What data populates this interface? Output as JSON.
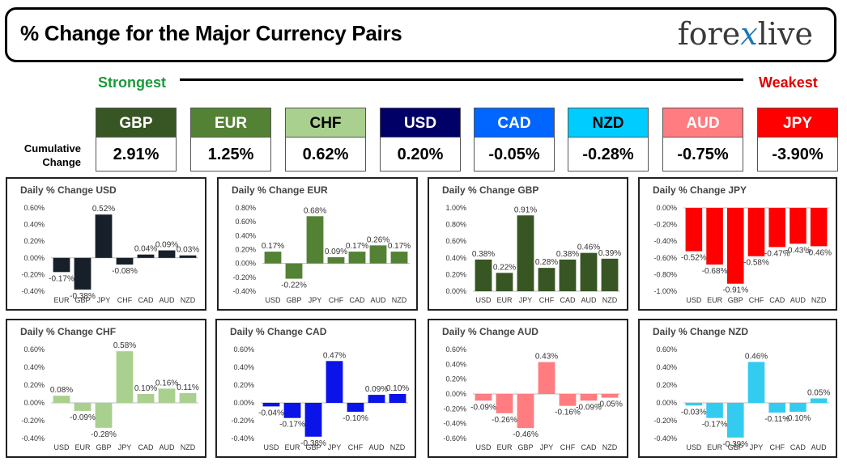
{
  "header": {
    "title": "% Change for the Major Currency Pairs",
    "logo_left": "fore",
    "logo_x": "x",
    "logo_right": "live"
  },
  "scale": {
    "strongest": "Strongest",
    "weakest": "Weakest"
  },
  "cumulative_label_1": "Cumulative",
  "cumulative_label_2": "Change",
  "colors": {
    "GBP": "#375623",
    "EUR": "#548235",
    "CHF": "#a9d08e",
    "USD": "#000066",
    "CAD": "#0066ff",
    "NZD": "#00ccff",
    "AUD": "#ff7c80",
    "JPY": "#ff0000"
  },
  "currencies": [
    {
      "code": "GBP",
      "value": "2.91%",
      "color": "#375623",
      "text": "#ffffff"
    },
    {
      "code": "EUR",
      "value": "1.25%",
      "color": "#548235",
      "text": "#ffffff"
    },
    {
      "code": "CHF",
      "value": "0.62%",
      "color": "#a9d08e",
      "text": "#000000"
    },
    {
      "code": "USD",
      "value": "0.20%",
      "color": "#000066",
      "text": "#ffffff"
    },
    {
      "code": "CAD",
      "value": "-0.05%",
      "color": "#0066ff",
      "text": "#ffffff"
    },
    {
      "code": "NZD",
      "value": "-0.28%",
      "color": "#00ccff",
      "text": "#000000"
    },
    {
      "code": "AUD",
      "value": "-0.75%",
      "color": "#ff7c80",
      "text": "#ffffff"
    },
    {
      "code": "JPY",
      "value": "-3.90%",
      "color": "#ff0000",
      "text": "#ffffff"
    }
  ],
  "chart_data": [
    {
      "type": "bar",
      "title": "Daily % Change USD",
      "color": "#17202a",
      "categories": [
        "EUR",
        "GBP",
        "JPY",
        "CHF",
        "CAD",
        "AUD",
        "NZD"
      ],
      "values": [
        -0.17,
        -0.38,
        0.52,
        -0.08,
        0.04,
        0.09,
        0.03
      ],
      "labels": [
        "-0.17%",
        "-0.38%",
        "0.52%",
        "-0.08%",
        "0.04%",
        "0.09%",
        "0.03%"
      ],
      "yticks": [
        "0.60%",
        "0.40%",
        "0.20%",
        "0.00%",
        "-0.20%",
        "-0.40%"
      ],
      "ylim": [
        -0.4,
        0.6
      ]
    },
    {
      "type": "bar",
      "title": "Daily % Change EUR",
      "color": "#548235",
      "categories": [
        "USD",
        "GBP",
        "JPY",
        "CHF",
        "CAD",
        "AUD",
        "NZD"
      ],
      "values": [
        0.17,
        -0.22,
        0.68,
        0.09,
        0.17,
        0.26,
        0.17
      ],
      "labels": [
        "0.17%",
        "-0.22%",
        "0.68%",
        "0.09%",
        "0.17%",
        "0.26%",
        "0.17%"
      ],
      "yticks": [
        "0.80%",
        "0.60%",
        "0.40%",
        "0.20%",
        "0.00%",
        "-0.20%",
        "-0.40%"
      ],
      "ylim": [
        -0.4,
        0.8
      ]
    },
    {
      "type": "bar",
      "title": "Daily % Change GBP",
      "color": "#375623",
      "categories": [
        "USD",
        "EUR",
        "JPY",
        "CHF",
        "CAD",
        "AUD",
        "NZD"
      ],
      "values": [
        0.38,
        0.22,
        0.91,
        0.28,
        0.38,
        0.46,
        0.39
      ],
      "labels": [
        "0.38%",
        "0.22%",
        "0.91%",
        "0.28%",
        "0.38%",
        "0.46%",
        "0.39%"
      ],
      "yticks": [
        "1.00%",
        "0.80%",
        "0.60%",
        "0.40%",
        "0.20%",
        "0.00%"
      ],
      "ylim": [
        0,
        1.0
      ]
    },
    {
      "type": "bar",
      "title": "Daily % Change JPY",
      "color": "#ff0000",
      "categories": [
        "USD",
        "EUR",
        "GBP",
        "CHF",
        "CAD",
        "AUD",
        "NZD"
      ],
      "values": [
        -0.52,
        -0.68,
        -0.91,
        -0.58,
        -0.47,
        -0.43,
        -0.46
      ],
      "labels": [
        "-0.52%",
        "-0.68%",
        "-0.91%",
        "-0.58%",
        "-0.47%",
        "-0.43%",
        "-0.46%"
      ],
      "yticks": [
        "0.00%",
        "-0.20%",
        "-0.40%",
        "-0.60%",
        "-0.80%",
        "-1.00%"
      ],
      "ylim": [
        -1.0,
        0
      ]
    },
    {
      "type": "bar",
      "title": "Daily % Change CHF",
      "color": "#a9d08e",
      "categories": [
        "USD",
        "EUR",
        "GBP",
        "JPY",
        "CAD",
        "AUD",
        "NZD"
      ],
      "values": [
        0.08,
        -0.09,
        -0.28,
        0.58,
        0.1,
        0.16,
        0.11
      ],
      "labels": [
        "0.08%",
        "-0.09%",
        "-0.28%",
        "0.58%",
        "0.10%",
        "0.16%",
        "0.11%"
      ],
      "yticks": [
        "0.60%",
        "0.40%",
        "0.20%",
        "0.00%",
        "-0.20%",
        "-0.40%"
      ],
      "ylim": [
        -0.4,
        0.6
      ]
    },
    {
      "type": "bar",
      "title": "Daily % Change CAD",
      "color": "#0a14e8",
      "categories": [
        "USD",
        "EUR",
        "GBP",
        "JPY",
        "CHF",
        "AUD",
        "NZD"
      ],
      "values": [
        -0.04,
        -0.17,
        -0.38,
        0.47,
        -0.1,
        0.09,
        0.1
      ],
      "labels": [
        "-0.04%",
        "-0.17%",
        "-0.38%",
        "0.47%",
        "-0.10%",
        "0.09%",
        "0.10%"
      ],
      "yticks": [
        "0.60%",
        "0.40%",
        "0.20%",
        "0.00%",
        "-0.20%",
        "-0.40%"
      ],
      "ylim": [
        -0.4,
        0.6
      ]
    },
    {
      "type": "bar",
      "title": "Daily % Change AUD",
      "color": "#ff7c80",
      "categories": [
        "USD",
        "EUR",
        "GBP",
        "JPY",
        "CHF",
        "CAD",
        "NZD"
      ],
      "values": [
        -0.09,
        -0.26,
        -0.46,
        0.43,
        -0.16,
        -0.09,
        -0.05
      ],
      "labels": [
        "-0.09%",
        "-0.26%",
        "-0.46%",
        "0.43%",
        "-0.16%",
        "-0.09%",
        "-0.05%"
      ],
      "yticks": [
        "0.60%",
        "0.40%",
        "0.20%",
        "0.00%",
        "-0.20%",
        "-0.40%",
        "-0.60%"
      ],
      "ylim": [
        -0.6,
        0.6
      ]
    },
    {
      "type": "bar",
      "title": "Daily % Change NZD",
      "color": "#33ccf0",
      "categories": [
        "USD",
        "EUR",
        "GBP",
        "JPY",
        "CHF",
        "CAD",
        "AUD"
      ],
      "values": [
        -0.03,
        -0.17,
        -0.39,
        0.46,
        -0.11,
        -0.1,
        0.05
      ],
      "labels": [
        "-0.03%",
        "-0.17%",
        "-0.39%",
        "0.46%",
        "-0.11%",
        "-0.10%",
        "0.05%"
      ],
      "yticks": [
        "0.60%",
        "0.40%",
        "0.20%",
        "0.00%",
        "-0.20%",
        "-0.40%"
      ],
      "ylim": [
        -0.4,
        0.6
      ]
    }
  ]
}
